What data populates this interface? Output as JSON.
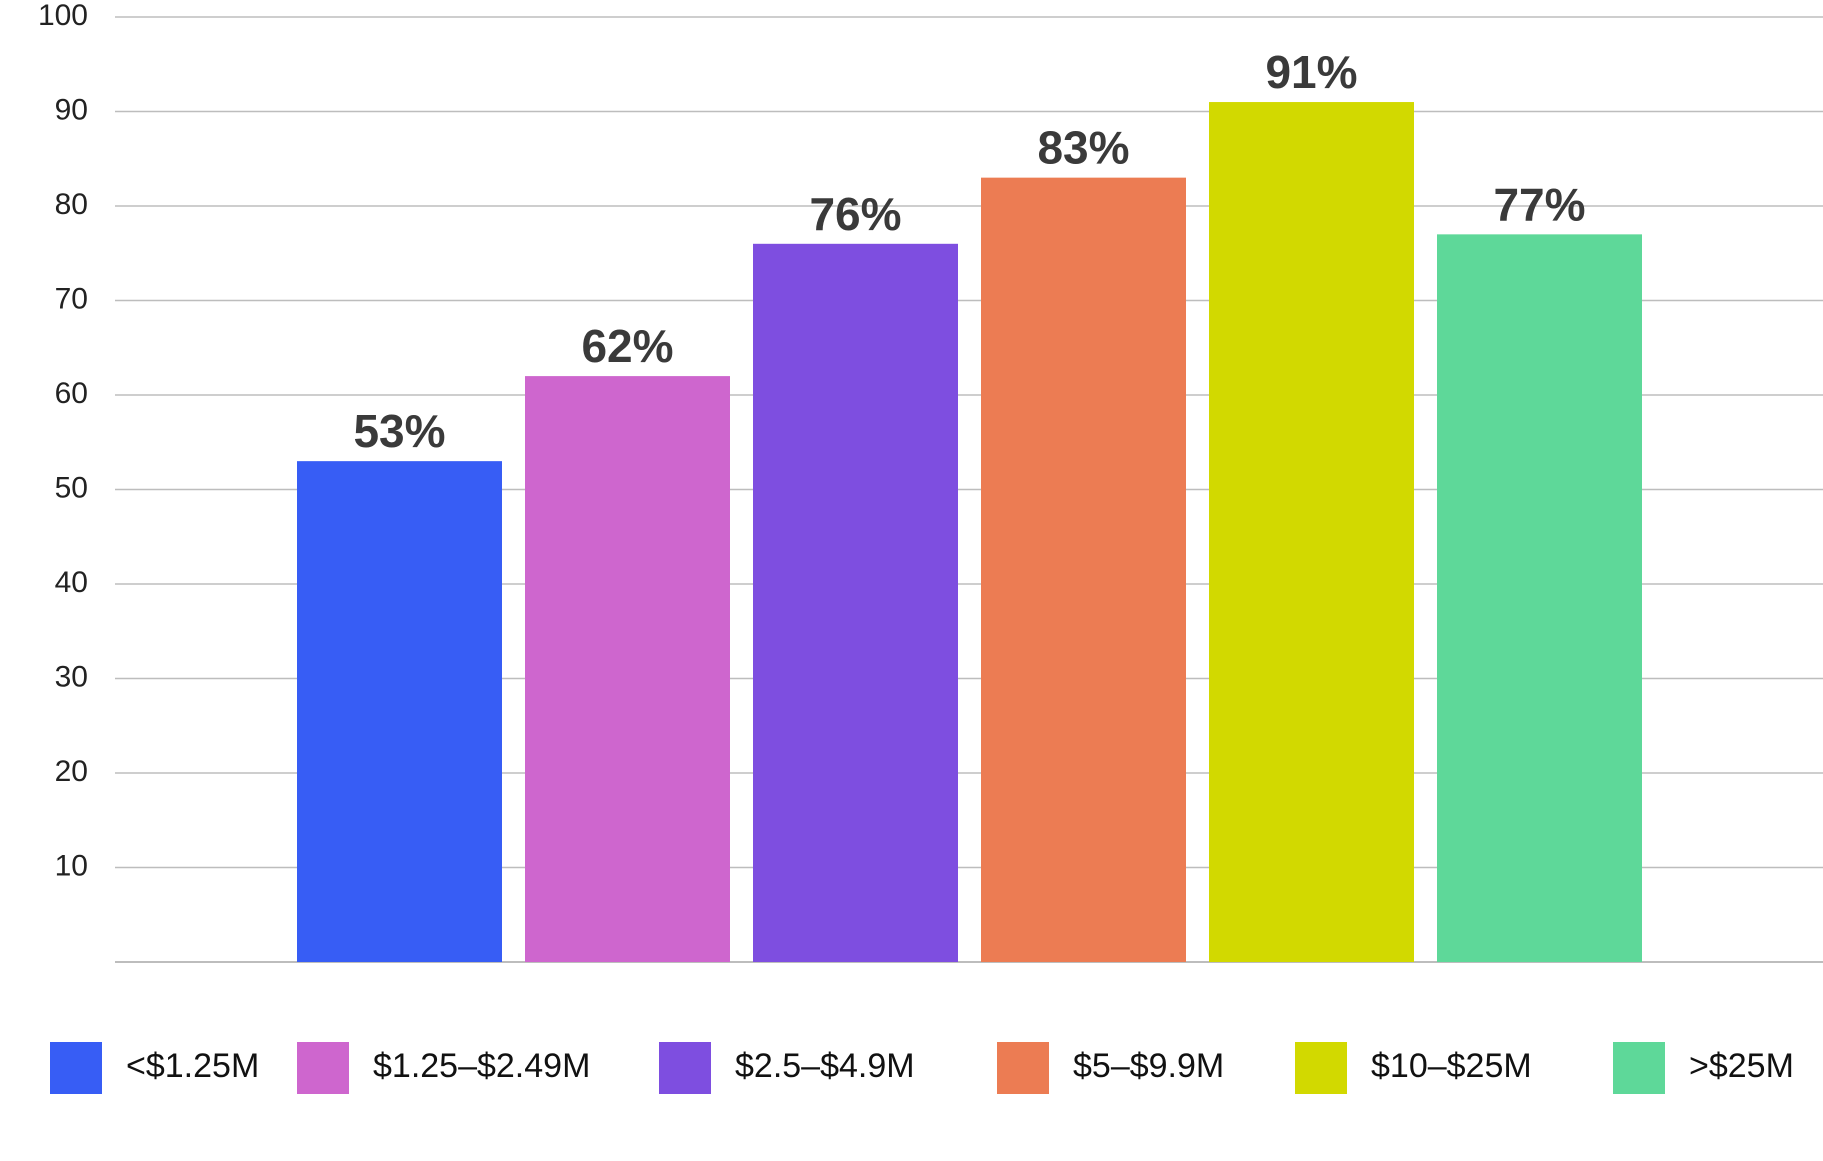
{
  "chart_data": {
    "type": "bar",
    "categories": [
      "<$1.25M",
      "$1.25–$2.49M",
      "$2.5–$4.9M",
      "$5–$9.9M",
      "$10–$25M",
      ">$25M"
    ],
    "values": [
      53,
      62,
      76,
      83,
      91,
      77
    ],
    "data_labels": [
      "53%",
      "62%",
      "76%",
      "83%",
      "91%",
      "77%"
    ],
    "colors": [
      "#375DF5",
      "#CE66CE",
      "#7E4EE0",
      "#EC7C53",
      "#D2D900",
      "#5ED899"
    ],
    "yticks": [
      "10",
      "20",
      "30",
      "40",
      "50",
      "60",
      "70",
      "80",
      "90",
      "100"
    ],
    "ylim": [
      0,
      100
    ],
    "grid": true,
    "legend_position": "bottom",
    "title": "",
    "xlabel": "",
    "ylabel": ""
  }
}
